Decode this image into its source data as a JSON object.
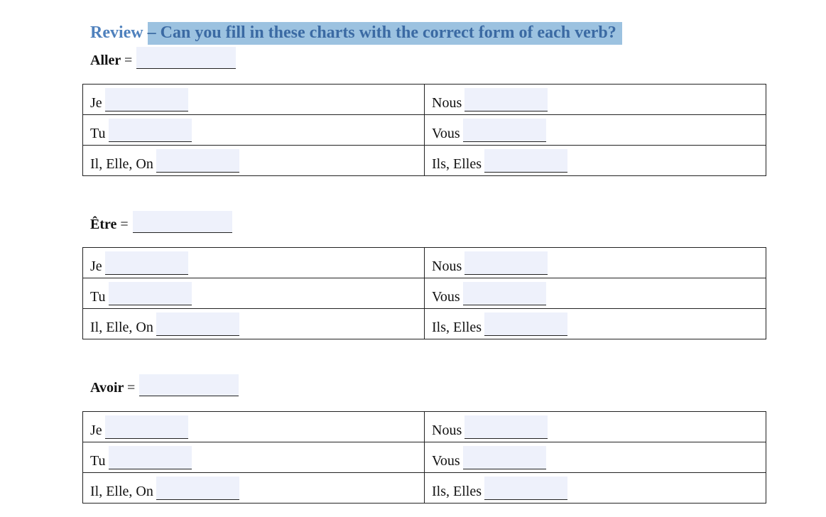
{
  "title": {
    "prefix": "Review ",
    "highlighted": "– Can you fill in these charts with the correct form of each verb?"
  },
  "sections": [
    {
      "verb": "Aller",
      "equals": "=",
      "rows": [
        [
          "Je",
          "Nous"
        ],
        [
          "Tu",
          "Vous"
        ],
        [
          "Il, Elle, On",
          "Ils, Elles"
        ]
      ]
    },
    {
      "verb": "Être",
      "equals": "=",
      "rows": [
        [
          "Je",
          "Nous"
        ],
        [
          "Tu",
          "Vous"
        ],
        [
          "Il, Elle, On",
          "Ils, Elles"
        ]
      ]
    },
    {
      "verb": "Avoir",
      "equals": "=",
      "rows": [
        [
          "Je",
          "Nous"
        ],
        [
          "Tu",
          "Vous"
        ],
        [
          "Il, Elle, On",
          "Ils, Elles"
        ]
      ]
    }
  ],
  "colors": {
    "title": "#4f81bd",
    "highlight": "#9cc2e0",
    "field": "#eef1fb"
  }
}
